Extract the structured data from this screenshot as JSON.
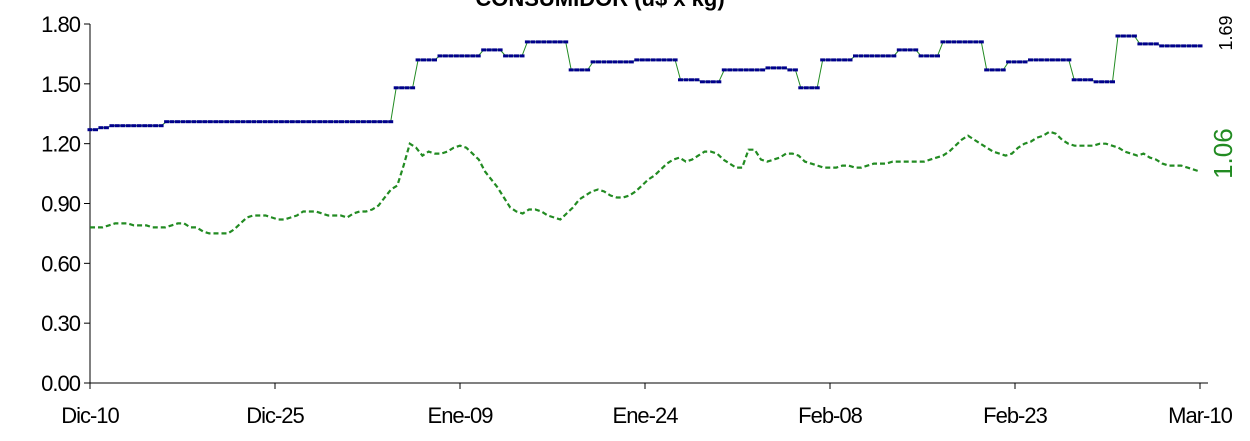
{
  "chart_data": {
    "type": "line",
    "title": "CONSUMIDOR (u$ x kg)",
    "xlabel": "",
    "ylabel": "",
    "ylim": [
      0,
      1.8
    ],
    "y_ticks": [
      "0.00",
      "0.30",
      "0.60",
      "0.90",
      "1.20",
      "1.50",
      "1.80"
    ],
    "x_ticks": [
      "Dic-10",
      "Dic-25",
      "Ene-09",
      "Ene-24",
      "Feb-08",
      "Feb-23",
      "Mar-10"
    ],
    "x_range": [
      "Dic-10",
      "Mar-10"
    ],
    "grid": false,
    "legend": "none",
    "series": [
      {
        "color": "#00008B",
        "style": "solid-with-dash-markers",
        "line_color": "#228B22",
        "last_label": "1.69",
        "values": [
          1.27,
          1.27,
          1.28,
          1.28,
          1.29,
          1.29,
          1.29,
          1.29,
          1.29,
          1.29,
          1.29,
          1.29,
          1.29,
          1.29,
          1.31,
          1.31,
          1.31,
          1.31,
          1.31,
          1.31,
          1.31,
          1.31,
          1.31,
          1.31,
          1.31,
          1.31,
          1.31,
          1.31,
          1.31,
          1.31,
          1.31,
          1.31,
          1.31,
          1.31,
          1.31,
          1.31,
          1.31,
          1.31,
          1.31,
          1.31,
          1.31,
          1.31,
          1.31,
          1.31,
          1.31,
          1.31,
          1.31,
          1.31,
          1.31,
          1.31,
          1.31,
          1.31,
          1.31,
          1.31,
          1.31,
          1.31,
          1.48,
          1.48,
          1.48,
          1.48,
          1.62,
          1.62,
          1.62,
          1.62,
          1.64,
          1.64,
          1.64,
          1.64,
          1.64,
          1.64,
          1.64,
          1.64,
          1.67,
          1.67,
          1.67,
          1.67,
          1.64,
          1.64,
          1.64,
          1.64,
          1.71,
          1.71,
          1.71,
          1.71,
          1.71,
          1.71,
          1.71,
          1.71,
          1.57,
          1.57,
          1.57,
          1.57,
          1.61,
          1.61,
          1.61,
          1.61,
          1.61,
          1.61,
          1.61,
          1.61,
          1.62,
          1.62,
          1.62,
          1.62,
          1.62,
          1.62,
          1.62,
          1.62,
          1.52,
          1.52,
          1.52,
          1.52,
          1.51,
          1.51,
          1.51,
          1.51,
          1.57,
          1.57,
          1.57,
          1.57,
          1.57,
          1.57,
          1.57,
          1.57,
          1.58,
          1.58,
          1.58,
          1.58,
          1.57,
          1.57,
          1.48,
          1.48,
          1.48,
          1.48,
          1.62,
          1.62,
          1.62,
          1.62,
          1.62,
          1.62,
          1.64,
          1.64,
          1.64,
          1.64,
          1.64,
          1.64,
          1.64,
          1.64,
          1.67,
          1.67,
          1.67,
          1.67,
          1.64,
          1.64,
          1.64,
          1.64,
          1.71,
          1.71,
          1.71,
          1.71,
          1.71,
          1.71,
          1.71,
          1.71,
          1.57,
          1.57,
          1.57,
          1.57,
          1.61,
          1.61,
          1.61,
          1.61,
          1.62,
          1.62,
          1.62,
          1.62,
          1.62,
          1.62,
          1.62,
          1.62,
          1.52,
          1.52,
          1.52,
          1.52,
          1.51,
          1.51,
          1.51,
          1.51,
          1.74,
          1.74,
          1.74,
          1.74,
          1.7,
          1.7,
          1.7,
          1.7,
          1.69,
          1.69,
          1.69,
          1.69,
          1.69,
          1.69,
          1.69,
          1.69
        ]
      },
      {
        "color": "#228B22",
        "style": "dashed",
        "last_label": "1.06",
        "values": [
          0.78,
          0.78,
          0.78,
          0.79,
          0.8,
          0.8,
          0.8,
          0.79,
          0.79,
          0.79,
          0.78,
          0.78,
          0.78,
          0.79,
          0.8,
          0.8,
          0.78,
          0.78,
          0.76,
          0.75,
          0.75,
          0.75,
          0.75,
          0.77,
          0.8,
          0.83,
          0.84,
          0.84,
          0.84,
          0.83,
          0.82,
          0.82,
          0.83,
          0.84,
          0.86,
          0.86,
          0.86,
          0.85,
          0.84,
          0.84,
          0.84,
          0.83,
          0.85,
          0.86,
          0.86,
          0.87,
          0.89,
          0.93,
          0.97,
          0.99,
          1.09,
          1.2,
          1.18,
          1.14,
          1.16,
          1.15,
          1.15,
          1.16,
          1.18,
          1.19,
          1.18,
          1.15,
          1.12,
          1.06,
          1.02,
          0.98,
          0.93,
          0.88,
          0.86,
          0.85,
          0.87,
          0.87,
          0.86,
          0.84,
          0.83,
          0.82,
          0.85,
          0.88,
          0.92,
          0.94,
          0.96,
          0.97,
          0.96,
          0.94,
          0.93,
          0.93,
          0.94,
          0.96,
          0.99,
          1.02,
          1.04,
          1.07,
          1.1,
          1.12,
          1.13,
          1.11,
          1.12,
          1.14,
          1.16,
          1.16,
          1.15,
          1.12,
          1.1,
          1.08,
          1.08,
          1.17,
          1.17,
          1.12,
          1.11,
          1.12,
          1.13,
          1.15,
          1.15,
          1.14,
          1.11,
          1.1,
          1.09,
          1.08,
          1.08,
          1.08,
          1.09,
          1.09,
          1.08,
          1.08,
          1.09,
          1.1,
          1.1,
          1.1,
          1.11,
          1.11,
          1.11,
          1.11,
          1.11,
          1.11,
          1.12,
          1.13,
          1.14,
          1.16,
          1.19,
          1.22,
          1.24,
          1.22,
          1.2,
          1.18,
          1.16,
          1.15,
          1.14,
          1.15,
          1.18,
          1.2,
          1.21,
          1.23,
          1.24,
          1.26,
          1.25,
          1.22,
          1.2,
          1.19,
          1.19,
          1.19,
          1.19,
          1.2,
          1.2,
          1.19,
          1.18,
          1.16,
          1.15,
          1.14,
          1.15,
          1.13,
          1.12,
          1.1,
          1.09,
          1.09,
          1.09,
          1.08,
          1.07,
          1.06
        ]
      }
    ]
  }
}
